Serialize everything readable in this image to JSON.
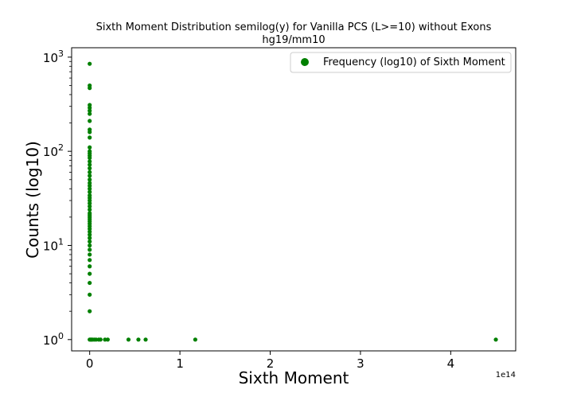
{
  "chart_data": {
    "type": "scatter",
    "title": "Sixth Moment Distribution semilog(y) for Vanilla PCS (L>=10) without Exons",
    "subtitle": "hg19/mm10",
    "xlabel": "Sixth Moment",
    "ylabel": "Counts (log10)",
    "x_offset_label": "1e14",
    "x_scale_exponent": 14,
    "xlim": [
      -0.2,
      4.72
    ],
    "ylim_log10": [
      -0.12,
      3.1
    ],
    "yscale": "log",
    "x_ticks": [
      0,
      1,
      2,
      3,
      4
    ],
    "y_ticks": [
      {
        "base": "10",
        "exp": "0",
        "value": 1
      },
      {
        "base": "10",
        "exp": "1",
        "value": 10
      },
      {
        "base": "10",
        "exp": "2",
        "value": 100
      },
      {
        "base": "10",
        "exp": "3",
        "value": 1000
      }
    ],
    "legend_position": "upper right",
    "series": [
      {
        "name": "Frequency (log10) of Sixth Moment",
        "color": "#008000",
        "points": [
          [
            0,
            850
          ],
          [
            0,
            500
          ],
          [
            0,
            470
          ],
          [
            0,
            310
          ],
          [
            0,
            290
          ],
          [
            0,
            270
          ],
          [
            0,
            250
          ],
          [
            0,
            210
          ],
          [
            0,
            170
          ],
          [
            0,
            160
          ],
          [
            0,
            140
          ],
          [
            0,
            110
          ],
          [
            0,
            100
          ],
          [
            0,
            95
          ],
          [
            0,
            90
          ],
          [
            0,
            85
          ],
          [
            0,
            78
          ],
          [
            0,
            72
          ],
          [
            0,
            66
          ],
          [
            0,
            60
          ],
          [
            0,
            55
          ],
          [
            0,
            50
          ],
          [
            0,
            46
          ],
          [
            0,
            43
          ],
          [
            0,
            40
          ],
          [
            0,
            37
          ],
          [
            0,
            34
          ],
          [
            0,
            32
          ],
          [
            0,
            30
          ],
          [
            0,
            28
          ],
          [
            0,
            26
          ],
          [
            0,
            24
          ],
          [
            0,
            22
          ],
          [
            0,
            21
          ],
          [
            0,
            20
          ],
          [
            0,
            19
          ],
          [
            0,
            18
          ],
          [
            0,
            17
          ],
          [
            0,
            16
          ],
          [
            0,
            15
          ],
          [
            0,
            14
          ],
          [
            0,
            13
          ],
          [
            0,
            12
          ],
          [
            0,
            11
          ],
          [
            0,
            10
          ],
          [
            0,
            9
          ],
          [
            0,
            8
          ],
          [
            0,
            7
          ],
          [
            0,
            6
          ],
          [
            0,
            5
          ],
          [
            0,
            4
          ],
          [
            0,
            3
          ],
          [
            0,
            2
          ],
          [
            0,
            1
          ],
          [
            0.01,
            1
          ],
          [
            0.02,
            1
          ],
          [
            0.03,
            1
          ],
          [
            0.05,
            1
          ],
          [
            0.07,
            1
          ],
          [
            0.1,
            1
          ],
          [
            0.12,
            1
          ],
          [
            0.17,
            1
          ],
          [
            0.2,
            1
          ],
          [
            0.43,
            1
          ],
          [
            0.54,
            1
          ],
          [
            0.62,
            1
          ],
          [
            1.17,
            1
          ],
          [
            4.5,
            1
          ]
        ]
      }
    ]
  }
}
